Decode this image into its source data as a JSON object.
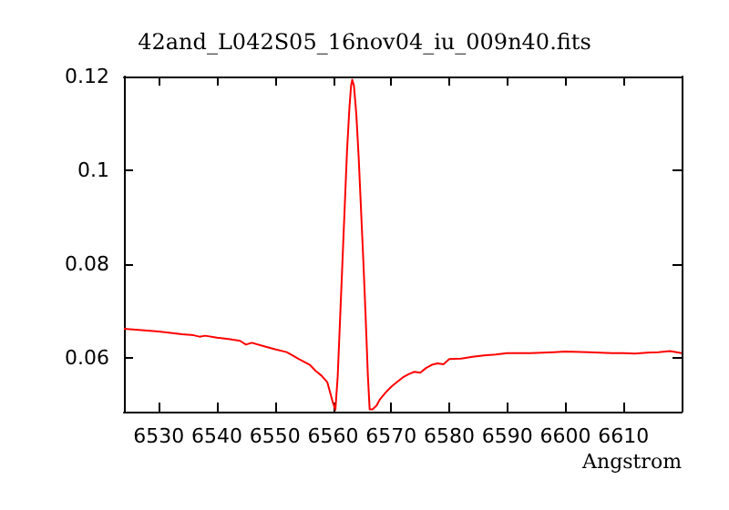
{
  "chart_data": {
    "type": "line",
    "title": "42and_L042S05_16nov04_iu_009n40.fits",
    "xlabel": "Angstrom",
    "xlim": [
      6524,
      6620
    ],
    "ylim": [
      0.0485,
      0.12
    ],
    "xticks": [
      6530,
      6540,
      6550,
      6560,
      6570,
      6580,
      6590,
      6600,
      6610
    ],
    "yticks": [
      0.06,
      0.08,
      0.1,
      0.12
    ],
    "grid": false,
    "marker": "none",
    "line_style": "solid",
    "series": [
      {
        "color": "#ff0000",
        "x": [
          6524,
          6526,
          6528,
          6530,
          6532,
          6534,
          6536,
          6537,
          6538,
          6540,
          6542,
          6544,
          6545,
          6546,
          6548,
          6550,
          6552,
          6553,
          6554,
          6556,
          6557,
          6558,
          6559,
          6560,
          6560.4,
          6560.8,
          6561.2,
          6561.6,
          6562,
          6562.4,
          6562.8,
          6563.1,
          6563.3,
          6563.6,
          6564,
          6564.4,
          6564.8,
          6565.2,
          6565.6,
          6566,
          6566.3,
          6566.8,
          6567.5,
          6568,
          6569,
          6570,
          6571,
          6572,
          6573,
          6574,
          6575,
          6576,
          6577,
          6578,
          6579,
          6580,
          6582,
          6584,
          6586,
          6588,
          6590,
          6594,
          6598,
          6600,
          6604,
          6606,
          6608,
          6610,
          6612,
          6614,
          6616,
          6618,
          6620
        ],
        "values": [
          0.0662,
          0.066,
          0.0658,
          0.0656,
          0.0653,
          0.065,
          0.0648,
          0.0645,
          0.0647,
          0.0643,
          0.064,
          0.0636,
          0.0628,
          0.0632,
          0.0625,
          0.0618,
          0.0612,
          0.0605,
          0.0598,
          0.0585,
          0.0572,
          0.0562,
          0.0548,
          0.0503,
          0.0489,
          0.056,
          0.068,
          0.08,
          0.092,
          0.104,
          0.113,
          0.118,
          0.1193,
          0.118,
          0.112,
          0.103,
          0.092,
          0.081,
          0.069,
          0.056,
          0.049,
          0.049,
          0.0498,
          0.051,
          0.0525,
          0.0538,
          0.0548,
          0.0558,
          0.0565,
          0.057,
          0.0568,
          0.0578,
          0.0585,
          0.0588,
          0.0586,
          0.0597,
          0.0598,
          0.0602,
          0.0605,
          0.0607,
          0.061,
          0.061,
          0.0612,
          0.0613,
          0.0612,
          0.0611,
          0.061,
          0.061,
          0.0609,
          0.0611,
          0.0612,
          0.0614,
          0.061
        ]
      }
    ]
  }
}
